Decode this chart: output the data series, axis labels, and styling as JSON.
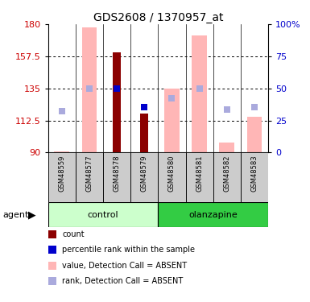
{
  "title": "GDS2608 / 1370957_at",
  "samples": [
    "GSM48559",
    "GSM48577",
    "GSM48578",
    "GSM48579",
    "GSM48580",
    "GSM48581",
    "GSM48582",
    "GSM48583"
  ],
  "ylim_left": [
    90,
    180
  ],
  "yticks_left": [
    90,
    112.5,
    135,
    157.5,
    180
  ],
  "ylim_right": [
    0,
    100
  ],
  "yticks_right": [
    0,
    25,
    50,
    75,
    100
  ],
  "red_bar_values": [
    null,
    null,
    160.5,
    117.5,
    null,
    null,
    null,
    null
  ],
  "blue_square_values": [
    null,
    null,
    135.0,
    122.0,
    null,
    null,
    null,
    null
  ],
  "pink_bar_values": [
    90.3,
    178.0,
    null,
    null,
    135.0,
    172.0,
    97.0,
    115.0
  ],
  "lightblue_square_values": [
    119.0,
    135.0,
    null,
    null,
    128.0,
    135.0,
    120.0,
    122.0
  ],
  "pink_bar_color": "#FFB6B6",
  "red_bar_color": "#8B0000",
  "blue_sq_color": "#0000CC",
  "lightblue_sq_color": "#AAAADD",
  "left_tick_color": "#CC0000",
  "right_tick_color": "#0000CC",
  "control_light_green": "#CCFFCC",
  "olanzapine_green": "#33CC44",
  "sample_gray": "#CCCCCC",
  "legend_items": [
    {
      "color": "#8B0000",
      "label": "count"
    },
    {
      "color": "#0000CC",
      "label": "percentile rank within the sample"
    },
    {
      "color": "#FFB6B6",
      "label": "value, Detection Call = ABSENT"
    },
    {
      "color": "#AAAADD",
      "label": "rank, Detection Call = ABSENT"
    }
  ]
}
